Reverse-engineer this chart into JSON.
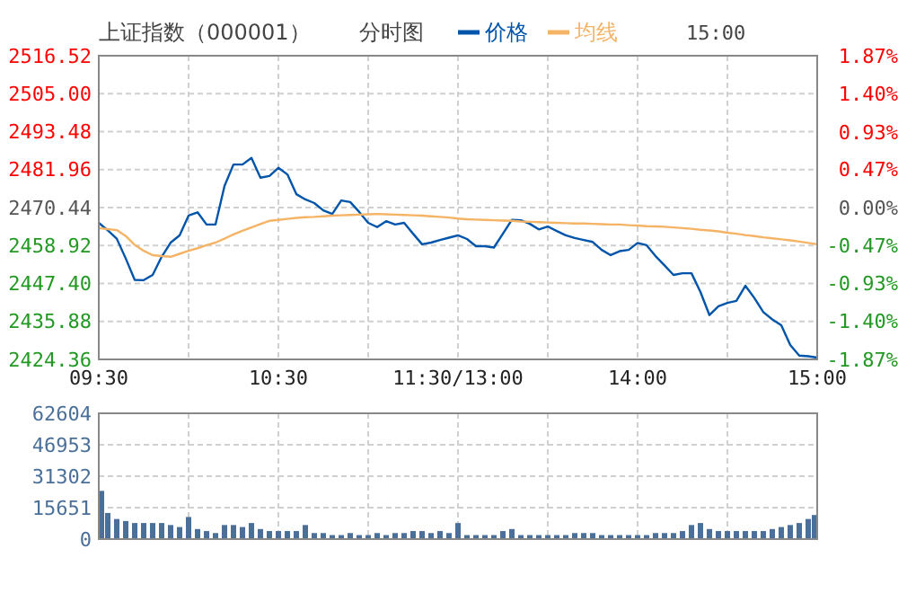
{
  "chart_data": [
    {
      "type": "line",
      "title": "上证指数（000001）",
      "subtitle": "分时图",
      "annotations": [
        "15:00"
      ],
      "legend": "top",
      "grid": true,
      "categories": [
        "09:30",
        null,
        null,
        null,
        null,
        null,
        null,
        null,
        null,
        null,
        null,
        null,
        null,
        null,
        null,
        null,
        null,
        null,
        null,
        null,
        "10:30",
        null,
        null,
        null,
        null,
        null,
        null,
        null,
        null,
        null,
        null,
        null,
        null,
        null,
        null,
        null,
        null,
        null,
        null,
        null,
        "11:30/13:00",
        null,
        null,
        null,
        null,
        null,
        null,
        null,
        null,
        null,
        null,
        null,
        null,
        null,
        null,
        null,
        null,
        null,
        null,
        null,
        "14:00",
        null,
        null,
        null,
        null,
        null,
        null,
        null,
        null,
        null,
        null,
        null,
        null,
        null,
        null,
        null,
        null,
        null,
        null,
        null,
        "15:00"
      ],
      "ylim": [
        2424.36,
        2516.52
      ],
      "yticks": [
        {
          "value": 2424.36,
          "label": "2424.36"
        },
        {
          "value": 2435.88,
          "label": "2435.88"
        },
        {
          "value": 2447.4,
          "label": "2447.40"
        },
        {
          "value": 2458.92,
          "label": "2458.92"
        },
        {
          "value": 2470.44,
          "label": "2470.44"
        },
        {
          "value": 2481.96,
          "label": "2481.96"
        },
        {
          "value": 2493.48,
          "label": "2493.48"
        },
        {
          "value": 2505,
          "label": "2505.00"
        },
        {
          "value": 2516.52,
          "label": "2516.52"
        }
      ],
      "y2lim": [
        -1.87,
        1.87
      ],
      "y2ticks": [
        {
          "value": -1.87,
          "label": "-1.87%"
        },
        {
          "value": -1.4,
          "label": "-1.40%"
        },
        {
          "value": -0.93,
          "label": "-0.93%"
        },
        {
          "value": -0.47,
          "label": "-0.47%"
        },
        {
          "value": 0,
          "label": "0.00%"
        },
        {
          "value": 0.47,
          "label": "0.47%"
        },
        {
          "value": 0.93,
          "label": "0.93%"
        },
        {
          "value": 1.4,
          "label": "1.40%"
        },
        {
          "value": 1.87,
          "label": "1.87%"
        }
      ],
      "series": [
        {
          "name": "价格",
          "color": "#0055aa",
          "values": [
            2465.8,
            2463.5,
            2461.0,
            2455.0,
            2448.5,
            2448.4,
            2450.0,
            2455.5,
            2459.8,
            2462.0,
            2468.0,
            2469.0,
            2465.3,
            2465.3,
            2477.0,
            2483.5,
            2483.5,
            2485.5,
            2479.5,
            2480.0,
            2482.5,
            2480.5,
            2474.5,
            2472.9,
            2471.8,
            2469.6,
            2468.5,
            2472.6,
            2472.1,
            2469.1,
            2465.8,
            2464.5,
            2466.3,
            2465.3,
            2465.8,
            2462.5,
            2459.3,
            2459.8,
            2460.6,
            2461.3,
            2462.0,
            2460.9,
            2458.7,
            2458.7,
            2458.3,
            2462.5,
            2466.7,
            2466.6,
            2465.5,
            2463.8,
            2464.7,
            2463.3,
            2462.0,
            2461.2,
            2460.6,
            2460.0,
            2457.6,
            2456.0,
            2457.2,
            2457.6,
            2459.7,
            2459.0,
            2455.7,
            2452.9,
            2450.0,
            2450.5,
            2450.5,
            2444.8,
            2437.8,
            2440.5,
            2441.5,
            2442.1,
            2446.7,
            2443.0,
            2438.7,
            2436.5,
            2434.7,
            2428.7,
            2425.5,
            2425.3,
            2424.9
          ]
        },
        {
          "name": "均线",
          "color": "#f5b366",
          "values": [
            2464.2,
            2463.9,
            2463.6,
            2461.8,
            2459.1,
            2457.3,
            2456.0,
            2455.7,
            2455.5,
            2456.4,
            2457.3,
            2458.1,
            2459.0,
            2459.8,
            2461.0,
            2462.3,
            2463.4,
            2464.4,
            2465.4,
            2466.4,
            2466.7,
            2467.0,
            2467.3,
            2467.5,
            2467.6,
            2467.8,
            2468.0,
            2468.1,
            2468.2,
            2468.3,
            2468.4,
            2468.5,
            2468.4,
            2468.3,
            2468.2,
            2468.1,
            2468.0,
            2467.8,
            2467.6,
            2467.4,
            2467.1,
            2466.9,
            2466.8,
            2466.7,
            2466.6,
            2466.5,
            2466.4,
            2466.2,
            2466.1,
            2466.0,
            2465.9,
            2465.8,
            2465.7,
            2465.6,
            2465.6,
            2465.5,
            2465.4,
            2465.3,
            2465.3,
            2465.1,
            2465.0,
            2464.8,
            2464.7,
            2464.6,
            2464.4,
            2464.2,
            2464.0,
            2463.7,
            2463.5,
            2463.2,
            2462.8,
            2462.5,
            2462.1,
            2461.8,
            2461.4,
            2461.1,
            2460.8,
            2460.5,
            2460.1,
            2459.7,
            2459.3
          ]
        }
      ]
    },
    {
      "type": "bar",
      "grid": true,
      "color": "#4a7099",
      "categories": [
        null,
        null,
        null,
        null,
        null,
        null,
        null,
        null,
        null,
        null,
        null,
        null,
        null,
        null,
        null,
        null,
        null,
        null,
        null,
        null,
        null,
        null,
        null,
        null,
        null,
        null,
        null,
        null,
        null,
        null,
        null,
        null,
        null,
        null,
        null,
        null,
        null,
        null,
        null,
        null,
        null,
        null,
        null,
        null,
        null,
        null,
        null,
        null,
        null,
        null,
        null,
        null,
        null,
        null,
        null,
        null,
        null,
        null,
        null,
        null,
        null,
        null,
        null,
        null,
        null,
        null,
        null,
        null,
        null,
        null,
        null,
        null,
        null,
        null,
        null,
        null,
        null,
        null,
        null,
        null,
        null
      ],
      "ylim": [
        0,
        62604
      ],
      "yticks": [
        0,
        15651,
        31302,
        46953,
        62604
      ],
      "values": [
        24000,
        13000,
        10000,
        9000,
        8000,
        8000,
        8000,
        8000,
        7000,
        6000,
        11000,
        5000,
        4000,
        3000,
        7000,
        7000,
        6000,
        8000,
        5000,
        4000,
        4000,
        4000,
        4000,
        7000,
        3000,
        3000,
        2000,
        2000,
        3000,
        2000,
        2000,
        3000,
        2000,
        3000,
        3000,
        4000,
        4000,
        3000,
        4000,
        3000,
        8000,
        2000,
        2000,
        2000,
        2000,
        4000,
        5000,
        2000,
        2000,
        2000,
        2000,
        2000,
        2000,
        3000,
        3000,
        3000,
        2000,
        2000,
        2000,
        2000,
        2000,
        2000,
        3000,
        3000,
        3000,
        4000,
        7000,
        8000,
        5000,
        4000,
        4000,
        4000,
        4000,
        4000,
        4000,
        5000,
        6000,
        7000,
        8000,
        10000,
        12000
      ]
    }
  ]
}
